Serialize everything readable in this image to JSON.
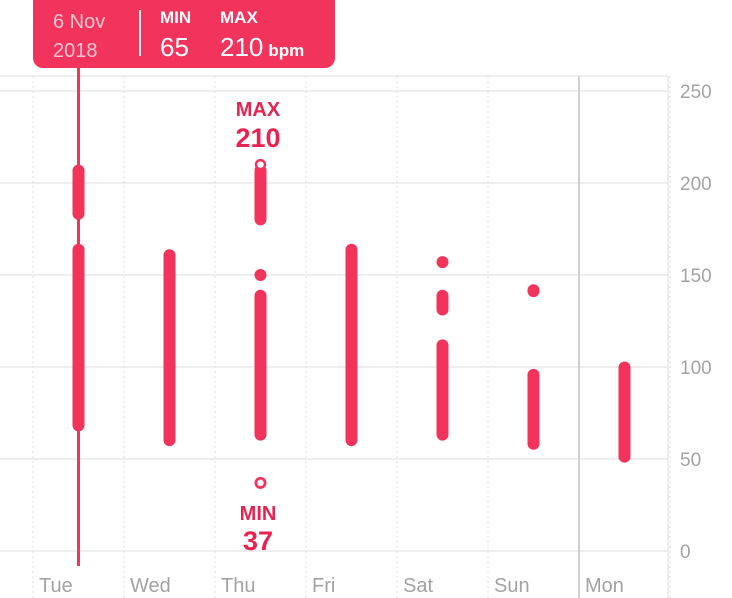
{
  "tooltip": {
    "date_line1": "6 Nov",
    "date_line2": "2018",
    "min_label": "MIN",
    "min_value": "65",
    "max_label": "MAX",
    "max_value": "210",
    "unit": "bpm"
  },
  "annotations": {
    "max_label": "MAX",
    "max_value": "210",
    "min_label": "MIN",
    "min_value": "37"
  },
  "colors": {
    "accent": "#f2335c",
    "grid": "#dcdcdc",
    "label": "#a3a3a3"
  },
  "chart_data": {
    "type": "range-bar",
    "y_ticks": [
      0,
      50,
      100,
      150,
      200,
      250
    ],
    "ylim": [
      0,
      250
    ],
    "grid": true,
    "categories": [
      "Tue",
      "Wed",
      "Thu",
      "Fri",
      "Sat",
      "Sun",
      "Mon"
    ],
    "selected_category": "Tue",
    "ranges": [
      {
        "day": "Tue",
        "segments": [
          [
            180,
            210
          ],
          [
            65,
            167
          ]
        ]
      },
      {
        "day": "Wed",
        "segments": [
          [
            57,
            164
          ]
        ]
      },
      {
        "day": "Thu",
        "segments": [
          [
            177,
            210
          ],
          [
            60,
            142
          ]
        ],
        "points": [
          150,
          37
        ]
      },
      {
        "day": "Fri",
        "segments": [
          [
            57,
            167
          ]
        ]
      },
      {
        "day": "Sat",
        "segments": [
          [
            60,
            115
          ],
          [
            128,
            142
          ]
        ],
        "points": [
          157
        ]
      },
      {
        "day": "Sun",
        "segments": [
          [
            55,
            99
          ],
          [
            138,
            145
          ]
        ]
      },
      {
        "day": "Mon",
        "segments": [
          [
            48,
            103
          ]
        ]
      }
    ]
  }
}
